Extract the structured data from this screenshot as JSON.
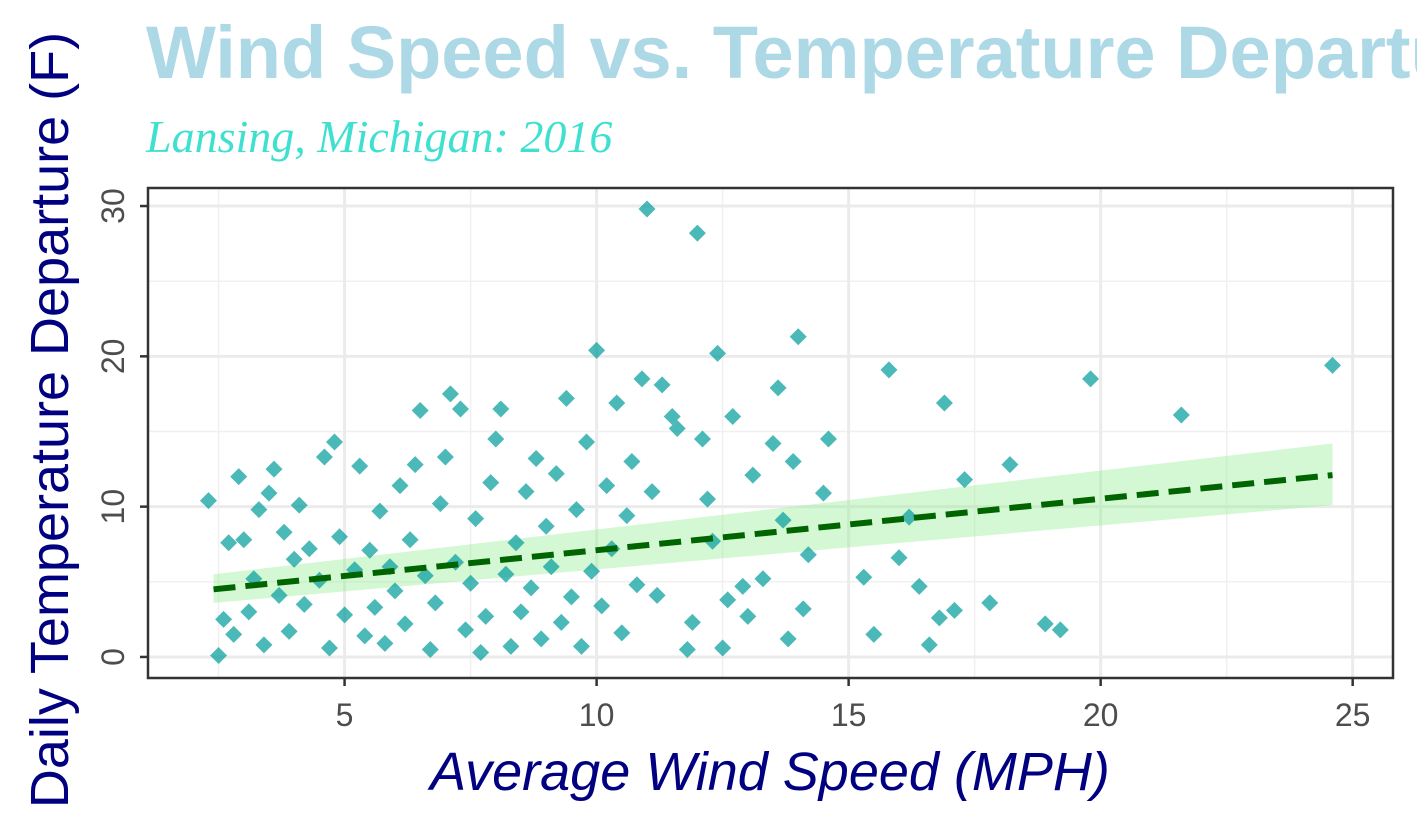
{
  "chart_data": {
    "type": "scatter",
    "title": "Wind Speed vs. Temperature Departure",
    "subtitle": "Lansing, Michigan: 2016",
    "xlabel": "Average Wind Speed (MPH)",
    "ylabel": "Daily Temperature Departure (F)",
    "xlim": [
      1.1,
      25.8
    ],
    "ylim": [
      -1.4,
      31.2
    ],
    "x_ticks": [
      5,
      10,
      15,
      20,
      25
    ],
    "y_ticks": [
      0,
      10,
      20,
      30
    ],
    "grid": true,
    "colors": {
      "title": "#add8e6",
      "subtitle": "#40e0d0",
      "axis_title": "#000080",
      "points": "#009b9b",
      "trend_line": "#006400",
      "confidence_band": "#90ee90"
    },
    "trend_line": {
      "x": [
        2.4,
        24.6
      ],
      "y": [
        4.5,
        12.1
      ],
      "ci_lower": [
        3.6,
        10.1
      ],
      "ci_upper": [
        5.5,
        14.2
      ],
      "style": "dashed"
    },
    "series": [
      {
        "points": [
          [
            2.3,
            10.4
          ],
          [
            2.5,
            0.1
          ],
          [
            2.6,
            2.5
          ],
          [
            2.7,
            7.6
          ],
          [
            2.8,
            1.5
          ],
          [
            2.9,
            12.0
          ],
          [
            3.0,
            7.8
          ],
          [
            3.1,
            3.0
          ],
          [
            3.2,
            5.2
          ],
          [
            3.3,
            9.8
          ],
          [
            3.4,
            0.8
          ],
          [
            3.5,
            10.9
          ],
          [
            3.6,
            12.5
          ],
          [
            3.7,
            4.1
          ],
          [
            3.8,
            8.3
          ],
          [
            3.9,
            1.7
          ],
          [
            4.0,
            6.5
          ],
          [
            4.1,
            10.1
          ],
          [
            4.2,
            3.5
          ],
          [
            4.3,
            7.2
          ],
          [
            4.5,
            5.1
          ],
          [
            4.6,
            13.3
          ],
          [
            4.7,
            0.6
          ],
          [
            4.8,
            14.3
          ],
          [
            4.9,
            8.0
          ],
          [
            5.0,
            2.8
          ],
          [
            5.2,
            5.8
          ],
          [
            5.3,
            12.7
          ],
          [
            5.4,
            1.4
          ],
          [
            5.5,
            7.1
          ],
          [
            5.6,
            3.3
          ],
          [
            5.7,
            9.7
          ],
          [
            5.8,
            0.9
          ],
          [
            5.9,
            6.0
          ],
          [
            6.0,
            4.4
          ],
          [
            6.1,
            11.4
          ],
          [
            6.2,
            2.2
          ],
          [
            6.3,
            7.8
          ],
          [
            6.4,
            12.8
          ],
          [
            6.5,
            16.4
          ],
          [
            6.6,
            5.4
          ],
          [
            6.7,
            0.5
          ],
          [
            6.8,
            3.6
          ],
          [
            6.9,
            10.2
          ],
          [
            7.0,
            13.3
          ],
          [
            7.1,
            17.5
          ],
          [
            7.2,
            6.3
          ],
          [
            7.3,
            16.5
          ],
          [
            7.4,
            1.8
          ],
          [
            7.5,
            4.9
          ],
          [
            7.6,
            9.2
          ],
          [
            7.7,
            0.3
          ],
          [
            7.8,
            2.7
          ],
          [
            7.9,
            11.6
          ],
          [
            8.0,
            14.5
          ],
          [
            8.1,
            16.5
          ],
          [
            8.2,
            5.5
          ],
          [
            8.3,
            0.7
          ],
          [
            8.4,
            7.6
          ],
          [
            8.5,
            3.0
          ],
          [
            8.6,
            11.0
          ],
          [
            8.7,
            4.6
          ],
          [
            8.8,
            13.2
          ],
          [
            8.9,
            1.2
          ],
          [
            9.0,
            8.7
          ],
          [
            9.1,
            6.0
          ],
          [
            9.2,
            12.2
          ],
          [
            9.3,
            2.3
          ],
          [
            9.4,
            17.2
          ],
          [
            9.5,
            4.0
          ],
          [
            9.6,
            9.8
          ],
          [
            9.7,
            0.7
          ],
          [
            9.8,
            14.3
          ],
          [
            9.9,
            5.7
          ],
          [
            10.0,
            20.4
          ],
          [
            10.1,
            3.4
          ],
          [
            10.2,
            11.4
          ],
          [
            10.3,
            7.2
          ],
          [
            10.4,
            16.9
          ],
          [
            10.5,
            1.6
          ],
          [
            10.6,
            9.4
          ],
          [
            10.7,
            13.0
          ],
          [
            10.8,
            4.8
          ],
          [
            10.9,
            18.5
          ],
          [
            11.0,
            29.8
          ],
          [
            11.1,
            11.0
          ],
          [
            11.2,
            4.1
          ],
          [
            11.3,
            18.1
          ],
          [
            11.5,
            16.0
          ],
          [
            11.6,
            15.2
          ],
          [
            11.8,
            0.5
          ],
          [
            11.9,
            2.3
          ],
          [
            12.0,
            28.2
          ],
          [
            12.1,
            14.5
          ],
          [
            12.2,
            10.5
          ],
          [
            12.3,
            7.7
          ],
          [
            12.4,
            20.2
          ],
          [
            12.5,
            0.6
          ],
          [
            12.6,
            3.8
          ],
          [
            12.7,
            16.0
          ],
          [
            12.9,
            4.7
          ],
          [
            13.0,
            2.7
          ],
          [
            13.1,
            12.1
          ],
          [
            13.3,
            5.2
          ],
          [
            13.5,
            14.2
          ],
          [
            13.6,
            17.9
          ],
          [
            13.7,
            9.1
          ],
          [
            13.8,
            1.2
          ],
          [
            13.9,
            13.0
          ],
          [
            14.0,
            21.3
          ],
          [
            14.1,
            3.2
          ],
          [
            14.2,
            6.8
          ],
          [
            14.5,
            10.9
          ],
          [
            14.6,
            14.5
          ],
          [
            15.3,
            5.3
          ],
          [
            15.5,
            1.5
          ],
          [
            15.8,
            19.1
          ],
          [
            16.0,
            6.6
          ],
          [
            16.2,
            9.3
          ],
          [
            16.4,
            4.7
          ],
          [
            16.6,
            0.8
          ],
          [
            16.8,
            2.6
          ],
          [
            16.9,
            16.9
          ],
          [
            17.1,
            3.1
          ],
          [
            17.3,
            11.8
          ],
          [
            17.8,
            3.6
          ],
          [
            18.2,
            12.8
          ],
          [
            18.9,
            2.2
          ],
          [
            19.2,
            1.8
          ],
          [
            19.8,
            18.5
          ],
          [
            21.6,
            16.1
          ],
          [
            24.6,
            19.4
          ]
        ]
      }
    ]
  }
}
